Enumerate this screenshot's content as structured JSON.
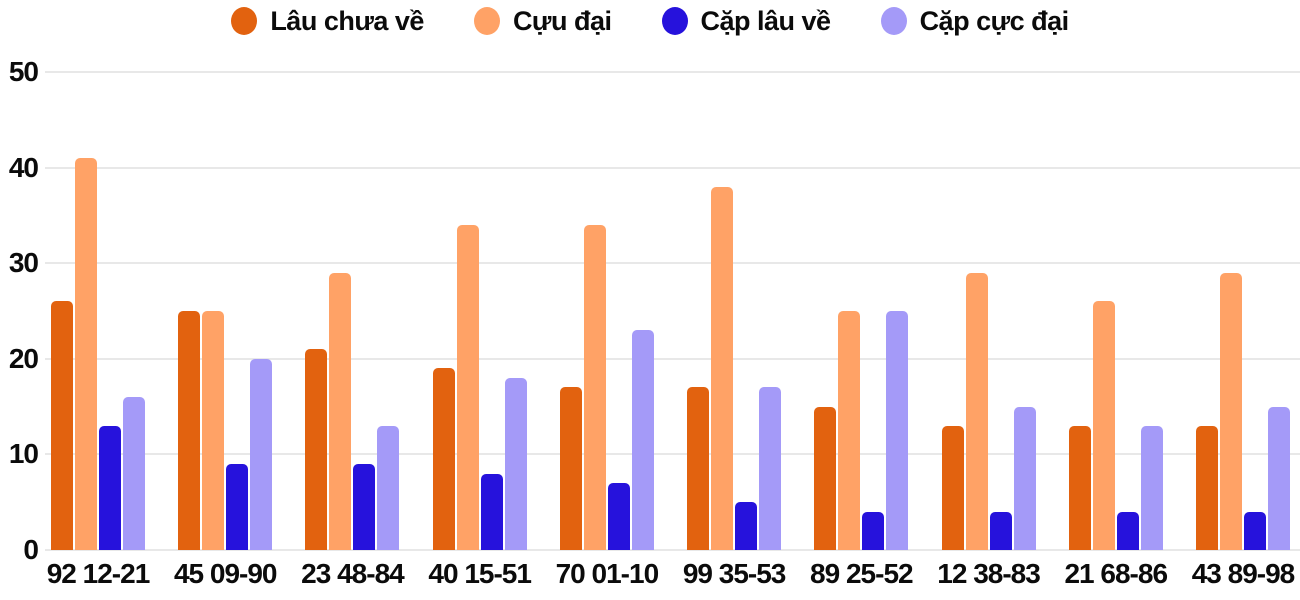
{
  "chart_data": {
    "type": "bar",
    "title": "",
    "categories": [
      "92 12-21",
      "45 09-90",
      "23 48-84",
      "40 15-51",
      "70 01-10",
      "99 35-53",
      "89 25-52",
      "12 38-83",
      "21 68-86",
      "43 89-98"
    ],
    "series": [
      {
        "name": "Lâu chưa về",
        "color": "#e2620f",
        "values": [
          26,
          25,
          21,
          19,
          17,
          17,
          15,
          13,
          13,
          13
        ]
      },
      {
        "name": "Cựu đại",
        "color": "#ffa266",
        "values": [
          41,
          25,
          29,
          34,
          34,
          38,
          25,
          29,
          26,
          29
        ]
      },
      {
        "name": "Cặp lâu về",
        "color": "#2612dc",
        "values": [
          13,
          9,
          9,
          8,
          7,
          5,
          4,
          4,
          4,
          4
        ]
      },
      {
        "name": "Cặp cực đại",
        "color": "#a49af8",
        "values": [
          16,
          20,
          13,
          18,
          23,
          17,
          25,
          15,
          13,
          15
        ]
      }
    ],
    "xlabel": "",
    "ylabel": "",
    "ylim": [
      0,
      50
    ],
    "yticks": [
      0,
      10,
      20,
      30,
      40,
      50
    ],
    "grid": true,
    "legend_position": "top"
  },
  "colors": {
    "grid": "#e8e8e8",
    "text": "#0b0b0b",
    "background": "#ffffff"
  }
}
